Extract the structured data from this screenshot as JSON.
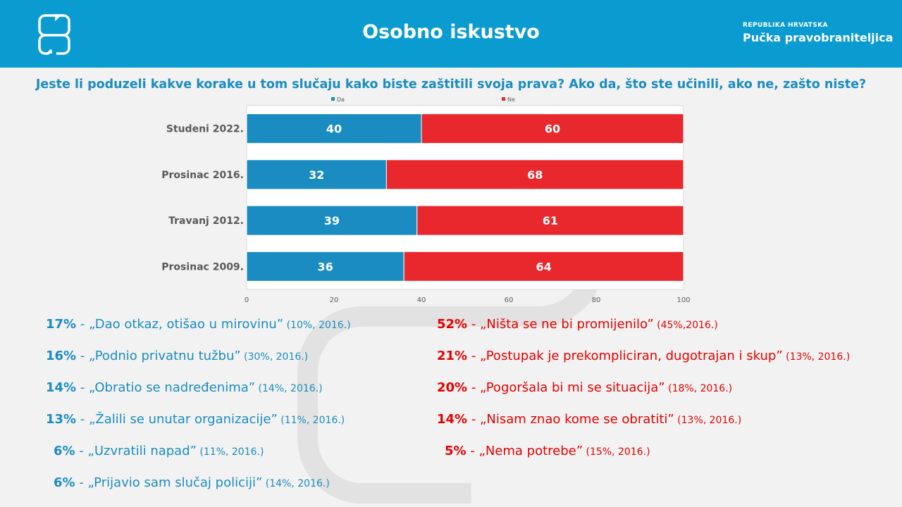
{
  "header": {
    "title": "Osobno iskustvo",
    "org_line1": "REPUBLIKA HRVATSKA",
    "org_line2": "Pučka pravobraniteljica",
    "logo_icon": "speech-bubble-logo-icon"
  },
  "question": "Jeste li poduzeli kakve korake u tom slučaju kako biste zaštitili svoja prava? Ako da, što ste učinili, ako ne, zašto niste?",
  "chart_data": {
    "type": "bar",
    "orientation": "horizontal",
    "stacked": true,
    "categories": [
      "Studeni 2022.",
      "Prosinac 2016.",
      "Travanj 2012.",
      "Prosinac 2009."
    ],
    "series": [
      {
        "name": "Da",
        "values": [
          40,
          32,
          39,
          36
        ],
        "color": "#1a8cc1"
      },
      {
        "name": "Ne",
        "values": [
          60,
          68,
          61,
          64
        ],
        "color": "#e8282d"
      }
    ],
    "xlim": [
      0,
      100
    ],
    "xticks": [
      0,
      20,
      40,
      60,
      80,
      100
    ],
    "legend_position": "top",
    "grid": false
  },
  "left_list": [
    {
      "pct": "17%",
      "text": " - „Dao otkaz, otišao u mirovinu”",
      "note": " (10%, 2016.)"
    },
    {
      "pct": "16%",
      "text": " - „Podnio privatnu tužbu”",
      "note": " (30%, 2016.)"
    },
    {
      "pct": "14%",
      "text": " - „Obratio se nadređenima”",
      "note": " (14%, 2016.)"
    },
    {
      "pct": "13%",
      "text": " - „Žalili se unutar organizacije”",
      "note": " (11%, 2016.)"
    },
    {
      "pct": "6%",
      "text": " - „Uzvratili napad”",
      "note": " (11%, 2016.)"
    },
    {
      "pct": "6%",
      "text": " - „Prijavio sam slučaj policiji”",
      "note": " (14%, 2016.)"
    }
  ],
  "right_list": [
    {
      "pct": "52%",
      "text": " - „Ništa se ne bi promijenilo”",
      "note": " (45%,2016.)"
    },
    {
      "pct": "21%",
      "text": " - „Postupak je prekompliciran, dugotrajan i skup”",
      "note": " (13%, 2016.)"
    },
    {
      "pct": "20%",
      "text": " - „Pogoršala bi mi se situacija”",
      "note": " (18%, 2016.)"
    },
    {
      "pct": "14%",
      "text": " - „Nisam znao kome se obratiti”",
      "note": " (13%, 2016.)"
    },
    {
      "pct": "5%",
      "text": " - „Nema potrebe”",
      "note": " (15%, 2016.)"
    }
  ]
}
